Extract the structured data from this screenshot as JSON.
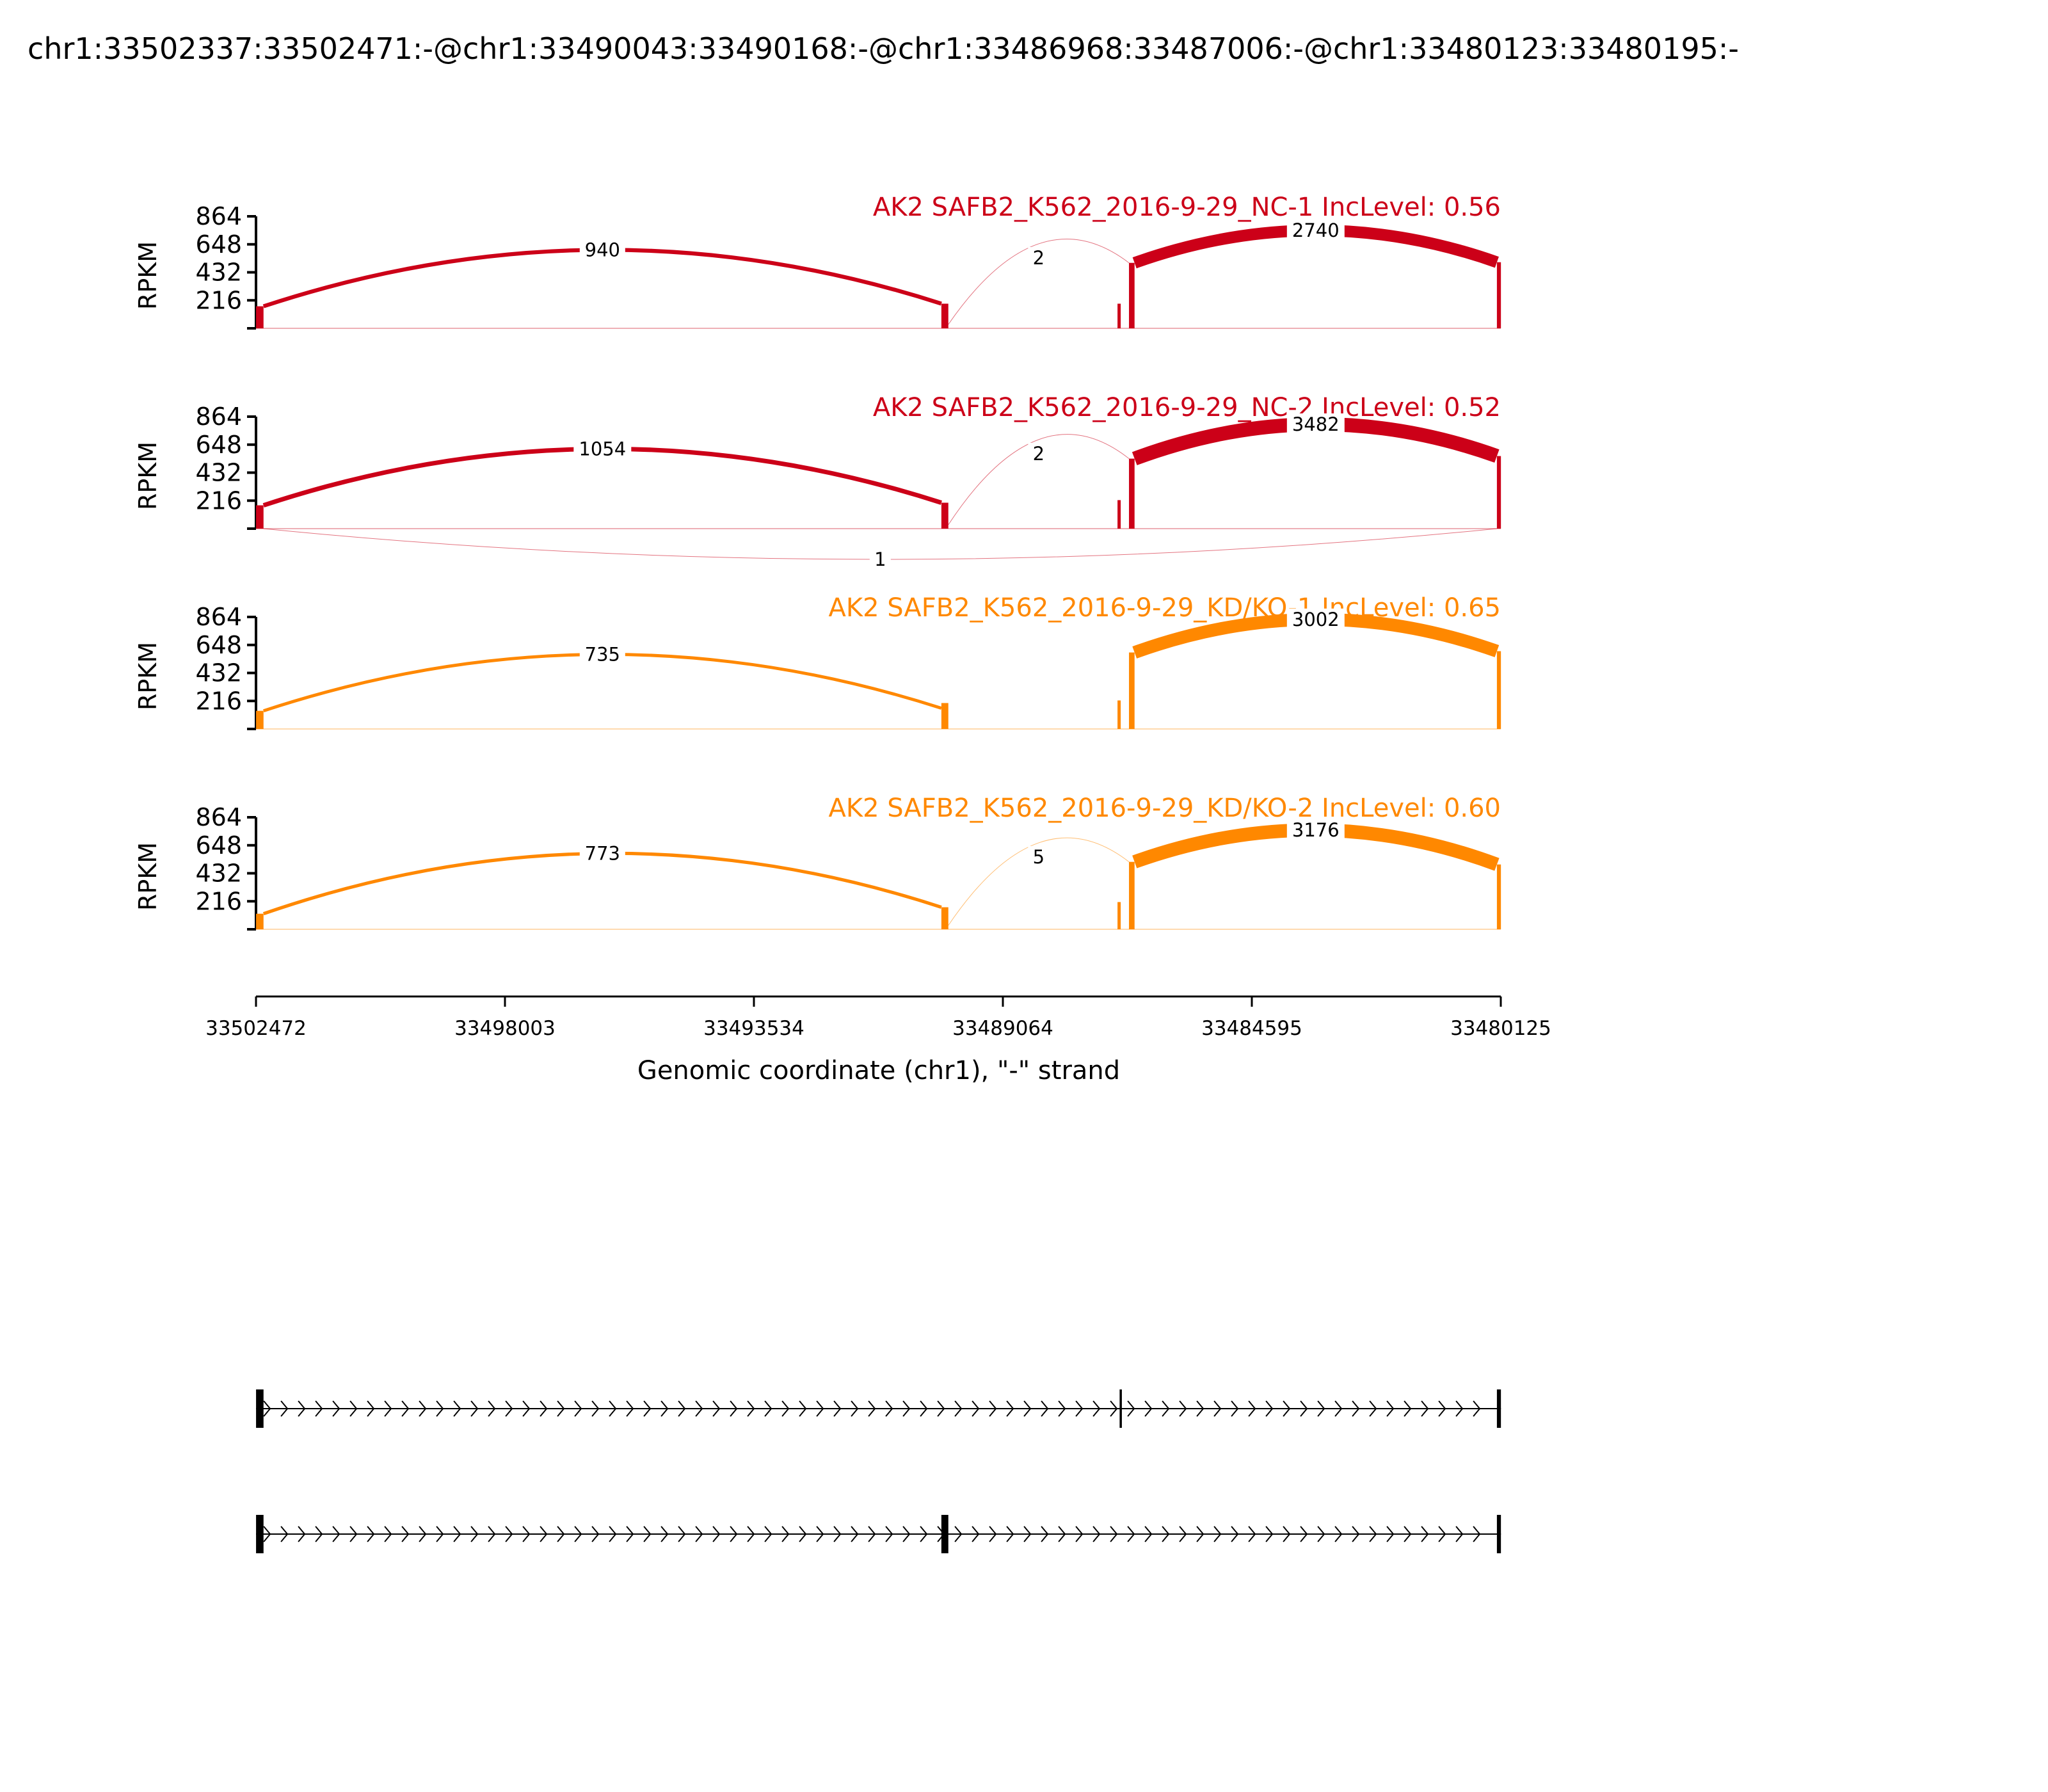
{
  "figure_title": "chr1:33502337:33502471:-@chr1:33490043:33490168:-@chr1:33486968:33487006:-@chr1:33480123:33480195:-",
  "colors": {
    "nc": "#cc0018",
    "kd": "#ff8800",
    "axis": "#000000"
  },
  "chart_data": {
    "type": "sashimi",
    "ylabel": "RPKM",
    "yticks": [
      216,
      432,
      648,
      864
    ],
    "ylim": [
      0,
      864
    ],
    "xlabel": "Genomic coordinate (chr1), \"-\" strand",
    "x_ticks": [
      "33502472",
      "33498003",
      "33493534",
      "33489064",
      "33484595",
      "33480125"
    ],
    "xlim": [
      33502472,
      33480125
    ],
    "exons": [
      {
        "start": 33502471,
        "end": 33502337
      },
      {
        "start": 33490168,
        "end": 33490043
      },
      {
        "start": 33487006,
        "end": 33486968
      },
      {
        "start": 33486800,
        "end": 33486700
      },
      {
        "start": 33480195,
        "end": 33480123
      }
    ],
    "samples": [
      {
        "title": "AK2 SAFB2_K562_2016-9-29_NC-1 IncLevel: 0.56",
        "group": "nc",
        "exon_heights": [
          170,
          190,
          190,
          505,
          510
        ],
        "junctions": [
          {
            "from": 33502337,
            "to": 33490168,
            "count": "940",
            "side": "above",
            "h0": 170,
            "h1": 190
          },
          {
            "from": 33490043,
            "to": 33486800,
            "count": "2",
            "side": "above",
            "h0": 30,
            "h1": 505
          },
          {
            "from": 33486700,
            "to": 33480195,
            "count": "2740",
            "side": "above",
            "h0": 505,
            "h1": 510
          }
        ]
      },
      {
        "title": "AK2 SAFB2_K562_2016-9-29_NC-2 IncLevel: 0.52",
        "group": "nc",
        "exon_heights": [
          180,
          200,
          220,
          540,
          560
        ],
        "junctions": [
          {
            "from": 33502337,
            "to": 33490168,
            "count": "1054",
            "side": "above",
            "h0": 180,
            "h1": 200
          },
          {
            "from": 33490043,
            "to": 33486800,
            "count": "2",
            "side": "above",
            "h0": 30,
            "h1": 540
          },
          {
            "from": 33486700,
            "to": 33480195,
            "count": "3482",
            "side": "above",
            "h0": 540,
            "h1": 560
          },
          {
            "from": 33502337,
            "to": 33480195,
            "count": "1",
            "side": "below",
            "h0": 0,
            "h1": 0
          }
        ]
      },
      {
        "title": "AK2 SAFB2_K562_2016-9-29_KD/KO-1 IncLevel: 0.65",
        "group": "kd",
        "exon_heights": [
          140,
          200,
          220,
          590,
          600
        ],
        "junctions": [
          {
            "from": 33502337,
            "to": 33490168,
            "count": "735",
            "side": "above",
            "h0": 140,
            "h1": 160
          },
          {
            "from": 33486700,
            "to": 33480195,
            "count": "3002",
            "side": "above",
            "h0": 590,
            "h1": 600
          }
        ]
      },
      {
        "title": "AK2 SAFB2_K562_2016-9-29_KD/KO-2 IncLevel: 0.60",
        "group": "kd",
        "exon_heights": [
          120,
          170,
          210,
          520,
          500
        ],
        "junctions": [
          {
            "from": 33502337,
            "to": 33490168,
            "count": "773",
            "side": "above",
            "h0": 120,
            "h1": 170
          },
          {
            "from": 33490043,
            "to": 33486800,
            "count": "5",
            "side": "above",
            "h0": 30,
            "h1": 520
          },
          {
            "from": 33486700,
            "to": 33480195,
            "count": "3176",
            "side": "above",
            "h0": 520,
            "h1": 500
          }
        ]
      }
    ],
    "isoforms": [
      {
        "exons": [
          [
            33502471,
            33502337
          ],
          [
            33486968,
            33486930
          ],
          [
            33480195,
            33480123
          ]
        ],
        "strand": "-"
      },
      {
        "exons": [
          [
            33502471,
            33502337
          ],
          [
            33490168,
            33490043
          ],
          [
            33480195,
            33480123
          ]
        ],
        "strand": "-"
      }
    ]
  }
}
